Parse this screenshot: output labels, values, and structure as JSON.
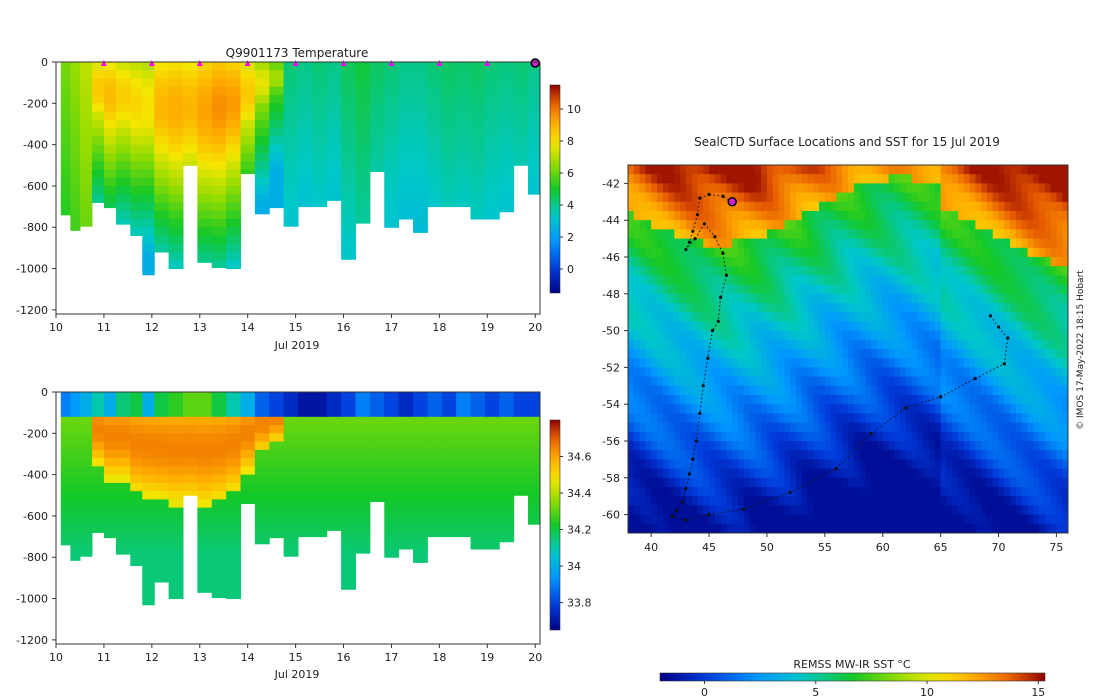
{
  "panel_temperature": {
    "title": "Q9901173  Temperature",
    "xlabel": "Jul 2019",
    "x_ticks": [
      "10",
      "11",
      "12",
      "13",
      "14",
      "15",
      "16",
      "17",
      "18",
      "19",
      "20"
    ],
    "y_ticks": [
      "0",
      "-200",
      "-400",
      "-600",
      "-800",
      "-1000",
      "-1200"
    ],
    "colorbar_ticks": [
      "10",
      "8",
      "6",
      "4",
      "2",
      "0"
    ]
  },
  "panel_salinity": {
    "xlabel": "Jul 2019",
    "x_ticks": [
      "10",
      "11",
      "12",
      "13",
      "14",
      "15",
      "16",
      "17",
      "18",
      "19",
      "20"
    ],
    "y_ticks": [
      "0",
      "-200",
      "-400",
      "-600",
      "-800",
      "-1000",
      "-1200"
    ],
    "colorbar_ticks": [
      "34.6",
      "34.4",
      "34.2",
      "34",
      "33.8"
    ]
  },
  "map": {
    "title": "SealCTD Surface Locations and SST for 15 Jul 2019",
    "x_ticks": [
      "40",
      "45",
      "50",
      "55",
      "60",
      "65",
      "70",
      "75"
    ],
    "y_ticks": [
      "-42",
      "-44",
      "-46",
      "-48",
      "-50",
      "-52",
      "-54",
      "-56",
      "-58",
      "-60"
    ],
    "colorbar_label": "REMSS MW-IR SST °C",
    "colorbar_ticks": [
      "0",
      "5",
      "10",
      "15"
    ],
    "credit": "© IMOS 17-May-2022 18:15 Hobart"
  },
  "chart_data": [
    {
      "type": "heatmap",
      "title": "Q9901173  Temperature",
      "xlabel": "Jul 2019",
      "ylabel": "",
      "xlim": [
        10,
        20.1
      ],
      "ylim": [
        -1220,
        0
      ],
      "clim": [
        -1.5,
        11.5
      ],
      "profile_days": [
        10.2,
        10.4,
        10.6,
        10.9,
        11.1,
        11.4,
        11.7,
        11.9,
        12.2,
        12.5,
        12.8,
        13.1,
        13.4,
        13.7,
        14.0,
        14.3,
        14.6,
        14.9,
        15.2,
        15.5,
        15.8,
        16.1,
        16.4,
        16.7,
        17.0,
        17.3,
        17.6,
        17.9,
        18.2,
        18.5,
        18.8,
        19.1,
        19.4,
        19.7,
        20.0
      ],
      "max_depth": [
        -740,
        -815,
        -795,
        -680,
        -705,
        -785,
        -840,
        -1030,
        -920,
        -1000,
        -500,
        -970,
        -995,
        -1000,
        -540,
        -735,
        -705,
        -795,
        -700,
        -700,
        -670,
        -955,
        -780,
        -530,
        -800,
        -760,
        -825,
        -700,
        -700,
        -700,
        -760,
        -760,
        -725,
        -500,
        -640
      ],
      "warm_core_depth": [
        0,
        0,
        0,
        -260,
        -330,
        -330,
        -400,
        -420,
        -430,
        -450,
        -440,
        -460,
        -440,
        -400,
        -300,
        -200,
        -150,
        0,
        0,
        0,
        0,
        0,
        0,
        0,
        0,
        0,
        0,
        0,
        0,
        0,
        0,
        0,
        0,
        0,
        0
      ],
      "surface_temp": [
        6.2,
        6.6,
        7.1,
        7.3,
        7.6,
        7.2,
        7.0,
        6.8,
        7.7,
        7.9,
        7.7,
        8.1,
        8.4,
        8.2,
        7.3,
        6.5,
        5.6,
        4.2,
        4.0,
        4.2,
        4.0,
        4.5,
        4.8,
        4.4,
        4.2,
        4.0,
        4.0,
        4.2,
        4.4,
        4.3,
        4.4,
        4.2,
        4.1,
        4.2,
        4.0
      ],
      "marker_days": [
        11,
        12,
        13,
        14,
        15,
        16,
        17,
        18,
        19,
        20
      ],
      "colorbar": {
        "min": -1.5,
        "max": 11.5
      }
    },
    {
      "type": "heatmap",
      "title": "",
      "xlabel": "Jul 2019",
      "ylabel": "",
      "xlim": [
        10,
        20.1
      ],
      "ylim": [
        -1220,
        0
      ],
      "clim": [
        33.65,
        34.8
      ],
      "surface_sal": [
        33.9,
        33.95,
        34.0,
        34.1,
        34.0,
        34.15,
        34.2,
        34.0,
        34.2,
        34.25,
        34.3,
        34.3,
        34.2,
        34.1,
        34.0,
        33.85,
        33.8,
        33.75,
        33.7,
        33.7,
        33.75,
        33.8,
        33.9,
        33.85,
        33.8,
        33.75,
        33.8,
        33.85,
        33.8,
        33.9,
        33.85,
        33.8,
        33.85,
        33.8,
        33.8
      ],
      "colorbar": {
        "min": 33.65,
        "max": 34.8
      }
    },
    {
      "type": "heatmap",
      "title": "SealCTD Surface Locations and SST for 15 Jul 2019",
      "xlim": [
        38,
        76
      ],
      "ylim": [
        -61,
        -41
      ],
      "track_lon": [
        47.0,
        46.2,
        45.0,
        44.2,
        44.0,
        43.6,
        43.3,
        43.0,
        43.8,
        44.6,
        45.5,
        46.2,
        46.5,
        46.0,
        45.8,
        45.3,
        44.9,
        44.5,
        44.2,
        43.9,
        43.6,
        43.3,
        43.0,
        42.7,
        42.2,
        41.8,
        43.0,
        45.0,
        48.0,
        52.0,
        56.0,
        59.0,
        62.0,
        65.0,
        68.0,
        70.5,
        70.8,
        70.0,
        69.3
      ],
      "track_lat": [
        -43.0,
        -42.7,
        -42.6,
        -42.8,
        -43.7,
        -44.6,
        -45.2,
        -45.6,
        -45.0,
        -44.2,
        -44.9,
        -45.8,
        -47.0,
        -48.2,
        -49.5,
        -50.0,
        -51.5,
        -53.0,
        -54.5,
        -56.0,
        -57.0,
        -57.8,
        -58.6,
        -59.3,
        -59.8,
        -60.1,
        -60.3,
        -60.0,
        -59.7,
        -58.8,
        -57.5,
        -55.6,
        -54.2,
        -53.6,
        -52.6,
        -51.8,
        -50.4,
        -49.8,
        -49.2
      ],
      "current_position": [
        47.0,
        -43.0
      ],
      "colorbar": {
        "min": -2,
        "max": 15.3
      }
    }
  ]
}
